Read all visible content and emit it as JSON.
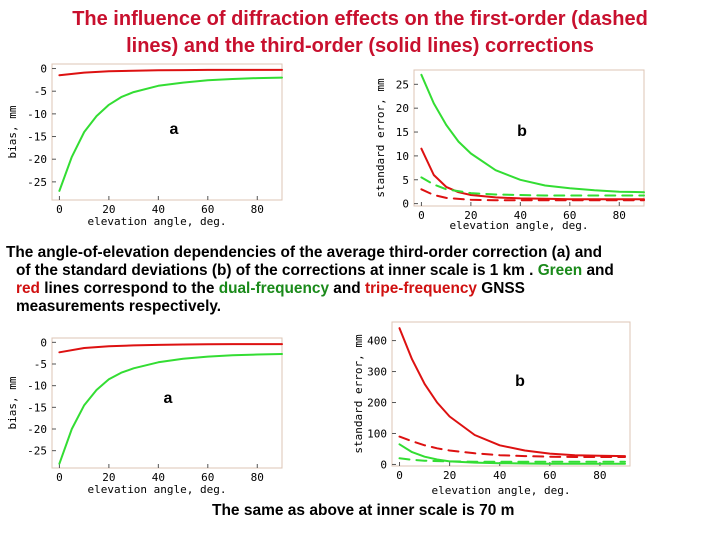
{
  "title_line1": "The influence of diffraction effects on the first-order (dashed",
  "title_line2": "lines) and the third-order (solid lines) corrections",
  "caption": {
    "line1": "The angle-of-elevation dependencies of the  average third-order correction (a) and",
    "line2_a": "of the standard deviations (b) of the corrections at inner scale is 1 km . ",
    "green_word": "Green",
    "line2_b": " and",
    "red_word": "red",
    "line3_a": " lines correspond to the ",
    "dual_word": "dual-frequency",
    "line3_b": " and ",
    "tripe_word": "tripe-frequency",
    "line3_c": " GNSS",
    "line4": "measurements respectively."
  },
  "footer": "The same as above at inner scale is 70 m",
  "colors": {
    "title": "#c8102e",
    "green": "#33dd33",
    "red": "#dd1111",
    "frame": "#ddc4b4"
  },
  "chart_data": [
    {
      "id": "top-a",
      "type": "line",
      "panel_label": "a",
      "xlabel": "elevation angle, deg.",
      "ylabel": "bias, mm",
      "xlim": [
        -3,
        90
      ],
      "ylim": [
        -29,
        1
      ],
      "xticks": [
        0,
        20,
        40,
        60,
        80
      ],
      "yticks": [
        0,
        -5,
        -10,
        -15,
        -20,
        -25
      ],
      "series": [
        {
          "color": "red",
          "style": "solid",
          "x": [
            0,
            10,
            20,
            30,
            40,
            50,
            60,
            70,
            80,
            90
          ],
          "y": [
            -1.5,
            -0.9,
            -0.6,
            -0.5,
            -0.4,
            -0.35,
            -0.3,
            -0.3,
            -0.3,
            -0.3
          ]
        },
        {
          "color": "green",
          "style": "solid",
          "x": [
            0,
            5,
            10,
            15,
            20,
            25,
            30,
            40,
            50,
            60,
            70,
            80,
            90
          ],
          "y": [
            -27,
            -19.5,
            -14,
            -10.5,
            -8,
            -6.3,
            -5.2,
            -3.8,
            -3.1,
            -2.6,
            -2.3,
            -2.1,
            -2.0
          ]
        }
      ]
    },
    {
      "id": "top-b",
      "type": "line",
      "panel_label": "b",
      "xlabel": "elevation angle, deg.",
      "ylabel": "standard error, mm",
      "xlim": [
        -3,
        90
      ],
      "ylim": [
        -0.5,
        28
      ],
      "xticks": [
        0,
        20,
        40,
        60,
        80
      ],
      "yticks": [
        0,
        5,
        10,
        15,
        20,
        25
      ],
      "series": [
        {
          "color": "green",
          "style": "solid",
          "x": [
            0,
            5,
            10,
            15,
            20,
            30,
            40,
            50,
            60,
            70,
            80,
            90
          ],
          "y": [
            27,
            21,
            16.5,
            13,
            10.5,
            7,
            5,
            3.8,
            3.2,
            2.8,
            2.5,
            2.4
          ]
        },
        {
          "color": "red",
          "style": "solid",
          "x": [
            0,
            5,
            10,
            15,
            20,
            30,
            40,
            50,
            60,
            70,
            80,
            90
          ],
          "y": [
            11.5,
            6,
            3.5,
            2.4,
            1.8,
            1.3,
            1.1,
            1.0,
            0.9,
            0.9,
            0.9,
            0.9
          ]
        },
        {
          "color": "green",
          "style": "dashed",
          "x": [
            0,
            5,
            10,
            20,
            30,
            40,
            50,
            60,
            70,
            80,
            90
          ],
          "y": [
            5.5,
            4,
            3,
            2.2,
            1.9,
            1.8,
            1.7,
            1.7,
            1.7,
            1.7,
            1.7
          ]
        },
        {
          "color": "red",
          "style": "dashed",
          "x": [
            0,
            5,
            10,
            20,
            30,
            40,
            50,
            60,
            70,
            80,
            90
          ],
          "y": [
            3,
            1.8,
            1.2,
            0.8,
            0.7,
            0.7,
            0.7,
            0.7,
            0.7,
            0.7,
            0.7
          ]
        }
      ]
    },
    {
      "id": "bottom-a",
      "type": "line",
      "panel_label": "a",
      "xlabel": "elevation angle, deg.",
      "ylabel": "bias, mm",
      "xlim": [
        -3,
        90
      ],
      "ylim": [
        -29,
        1
      ],
      "xticks": [
        0,
        20,
        40,
        60,
        80
      ],
      "yticks": [
        0,
        -5,
        -10,
        -15,
        -20,
        -25
      ],
      "series": [
        {
          "color": "red",
          "style": "solid",
          "x": [
            0,
            10,
            20,
            30,
            40,
            50,
            60,
            70,
            80,
            90
          ],
          "y": [
            -2.3,
            -1.3,
            -0.9,
            -0.7,
            -0.6,
            -0.5,
            -0.45,
            -0.4,
            -0.4,
            -0.4
          ]
        },
        {
          "color": "green",
          "style": "solid",
          "x": [
            0,
            5,
            10,
            15,
            20,
            25,
            30,
            40,
            50,
            60,
            70,
            80,
            90
          ],
          "y": [
            -28,
            -20,
            -14.5,
            -11,
            -8.5,
            -7,
            -6,
            -4.6,
            -3.8,
            -3.3,
            -3.0,
            -2.8,
            -2.7
          ]
        }
      ]
    },
    {
      "id": "bottom-b",
      "type": "line",
      "panel_label": "b",
      "xlabel": "elevation angle, deg.",
      "ylabel": "standard error, mm",
      "xlim": [
        -3,
        92
      ],
      "ylim": [
        -5,
        460
      ],
      "xticks": [
        0,
        20,
        40,
        60,
        80
      ],
      "yticks": [
        0,
        100,
        200,
        300,
        400
      ],
      "series": [
        {
          "color": "red",
          "style": "solid",
          "x": [
            0,
            5,
            10,
            15,
            20,
            30,
            40,
            50,
            60,
            70,
            80,
            90
          ],
          "y": [
            440,
            340,
            260,
            200,
            155,
            95,
            62,
            45,
            35,
            30,
            28,
            27
          ]
        },
        {
          "color": "red",
          "style": "dashed",
          "x": [
            0,
            5,
            10,
            15,
            20,
            30,
            40,
            50,
            60,
            70,
            80,
            90
          ],
          "y": [
            90,
            75,
            62,
            52,
            45,
            36,
            30,
            27,
            25,
            24,
            24,
            24
          ]
        },
        {
          "color": "green",
          "style": "solid",
          "x": [
            0,
            5,
            10,
            15,
            20,
            30,
            40,
            50,
            60,
            70,
            80,
            90
          ],
          "y": [
            65,
            40,
            25,
            16,
            10,
            6,
            4,
            3,
            2.5,
            2,
            2,
            2
          ]
        },
        {
          "color": "green",
          "style": "dashed",
          "x": [
            0,
            5,
            10,
            20,
            30,
            40,
            50,
            60,
            70,
            80,
            90
          ],
          "y": [
            20,
            15,
            12,
            10,
            9,
            9,
            9,
            9,
            9,
            9,
            9
          ]
        }
      ]
    }
  ]
}
